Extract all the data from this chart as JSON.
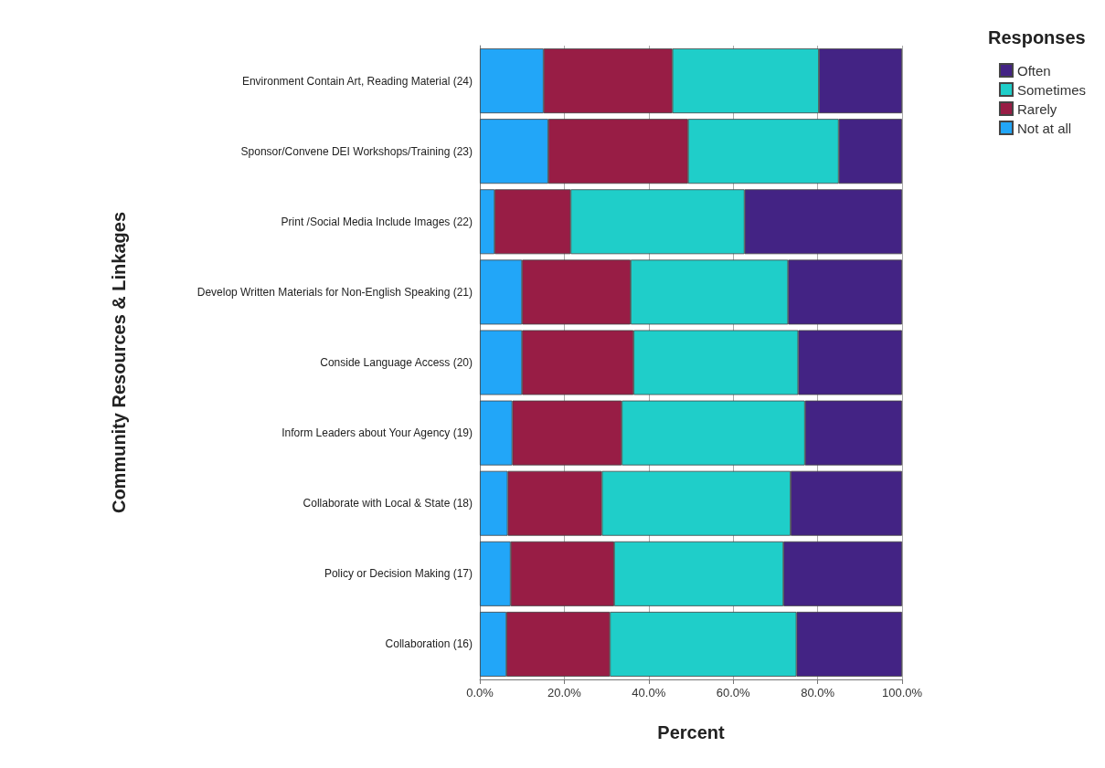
{
  "chart_data": {
    "type": "bar",
    "orientation": "horizontal",
    "stacked": true,
    "xlabel": "Percent",
    "ylabel": "Community Resources & Linkages",
    "legend_title": "Responses",
    "legend": "top right",
    "grid": "x",
    "categories": [
      "Environment Contain Art, Reading Material (24)",
      "Sponsor/Convene DEI Workshops/Training (23)",
      "Print /Social Media Include Images (22)",
      "Develop Written Materials for Non-English Speaking (21)",
      "Conside Language Access (20)",
      "Inform Leaders about Your Agency (19)",
      "Collaborate with Local & State (18)",
      "Policy or Decision Making (17)",
      "Collaboration (16)"
    ],
    "xlim": [
      0,
      100
    ],
    "xticks": [
      {
        "value": 0,
        "label": "0.0%"
      },
      {
        "value": 20,
        "label": "20.0%"
      },
      {
        "value": 40,
        "label": "40.0%"
      },
      {
        "value": 60,
        "label": "60.0%"
      },
      {
        "value": 80,
        "label": "80.0%"
      },
      {
        "value": 100,
        "label": "100.0%"
      }
    ],
    "series": [
      {
        "name": "Not at all",
        "color": "#22a6f8",
        "values": [
          15.1,
          16.2,
          3.5,
          10.0,
          10.0,
          7.7,
          6.6,
          7.3,
          6.3
        ]
      },
      {
        "name": "Rarely",
        "color": "#981d45",
        "values": [
          30.5,
          33.1,
          18.0,
          25.7,
          26.4,
          25.9,
          22.3,
          24.5,
          24.5
        ]
      },
      {
        "name": "Sometimes",
        "color": "#1fcec9",
        "values": [
          34.7,
          35.7,
          41.2,
          37.3,
          39.0,
          43.4,
          44.7,
          40.1,
          44.2
        ]
      },
      {
        "name": "Often",
        "color": "#432384",
        "values": [
          19.7,
          15.0,
          37.3,
          27.0,
          24.6,
          23.0,
          26.4,
          28.1,
          25.0
        ]
      }
    ]
  }
}
